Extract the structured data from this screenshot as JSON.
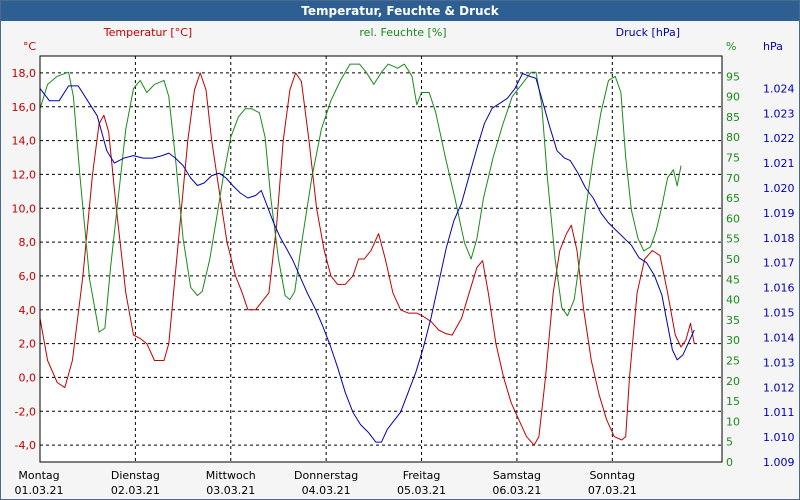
{
  "window": {
    "title": "Temperatur, Feuchte & Druck"
  },
  "chart_data": {
    "type": "line",
    "title": "Temperatur, Feuchte & Druck",
    "colors": {
      "temperature": "#c00000",
      "humidity": "#1a8a1a",
      "pressure": "#0000b4",
      "grid": "#000000",
      "frame_title_bg": "#2d5f93"
    },
    "axes": {
      "left": {
        "unit": "°C",
        "label": "Temperatur [°C]",
        "min": -5,
        "max": 19,
        "ticks": [
          "-4,0",
          "-2,0",
          "0,0",
          "2,0",
          "4,0",
          "6,0",
          "8,0",
          "10,0",
          "12,0",
          "14,0",
          "16,0",
          "18,0"
        ],
        "tick_values": [
          -4,
          -2,
          0,
          2,
          4,
          6,
          8,
          10,
          12,
          14,
          16,
          18
        ]
      },
      "right1": {
        "unit": "%",
        "label": "rel. Feuchte [%]",
        "min": 0,
        "max": 100,
        "ticks": [
          "0",
          "5",
          "10",
          "15",
          "20",
          "25",
          "30",
          "35",
          "40",
          "45",
          "50",
          "55",
          "60",
          "65",
          "70",
          "75",
          "80",
          "85",
          "90",
          "95"
        ],
        "tick_values": [
          0,
          5,
          10,
          15,
          20,
          25,
          30,
          35,
          40,
          45,
          50,
          55,
          60,
          65,
          70,
          75,
          80,
          85,
          90,
          95
        ]
      },
      "right2": {
        "unit": "hPa",
        "label": "Druck [hPa]",
        "min": 1.009,
        "max": 1.0253,
        "ticks": [
          "1.009",
          "1.010",
          "1.011",
          "1.012",
          "1.013",
          "1.014",
          "1.015",
          "1.016",
          "1.017",
          "1.018",
          "1.019",
          "1.020",
          "1.021",
          "1.022",
          "1.023",
          "1.024"
        ],
        "tick_values": [
          1.009,
          1.01,
          1.011,
          1.012,
          1.013,
          1.014,
          1.015,
          1.016,
          1.017,
          1.018,
          1.019,
          1.02,
          1.021,
          1.022,
          1.023,
          1.024
        ]
      }
    },
    "x": {
      "min": 0,
      "max": 7.15,
      "days": [
        {
          "name": "Montag",
          "date": "01.03.21",
          "pos": 0
        },
        {
          "name": "Dienstag",
          "date": "02.03.21",
          "pos": 1
        },
        {
          "name": "Mittwoch",
          "date": "03.03.21",
          "pos": 2
        },
        {
          "name": "Donnerstag",
          "date": "04.03.21",
          "pos": 3
        },
        {
          "name": "Freitag",
          "date": "05.03.21",
          "pos": 4
        },
        {
          "name": "Samstag",
          "date": "06.03.21",
          "pos": 5
        },
        {
          "name": "Sonntag",
          "date": "07.03.21",
          "pos": 6
        }
      ]
    },
    "series": [
      {
        "name": "Temperatur",
        "axis": "left",
        "points": [
          [
            0,
            3.5
          ],
          [
            0.08,
            1.0
          ],
          [
            0.18,
            -0.3
          ],
          [
            0.26,
            -0.6
          ],
          [
            0.34,
            1.0
          ],
          [
            0.45,
            6.0
          ],
          [
            0.55,
            12.0
          ],
          [
            0.62,
            15.0
          ],
          [
            0.67,
            15.5
          ],
          [
            0.72,
            14.5
          ],
          [
            0.8,
            10.0
          ],
          [
            0.9,
            5.0
          ],
          [
            0.98,
            2.5
          ],
          [
            1.05,
            2.3
          ],
          [
            1.12,
            2.0
          ],
          [
            1.2,
            1.0
          ],
          [
            1.3,
            1.0
          ],
          [
            1.35,
            2.0
          ],
          [
            1.45,
            8.0
          ],
          [
            1.55,
            14.0
          ],
          [
            1.62,
            17.0
          ],
          [
            1.68,
            18.0
          ],
          [
            1.74,
            17.0
          ],
          [
            1.8,
            14.0
          ],
          [
            1.88,
            11.0
          ],
          [
            1.96,
            8.0
          ],
          [
            2.05,
            6.0
          ],
          [
            2.12,
            5.0
          ],
          [
            2.18,
            4.0
          ],
          [
            2.26,
            4.0
          ],
          [
            2.33,
            4.5
          ],
          [
            2.4,
            5.0
          ],
          [
            2.48,
            9.0
          ],
          [
            2.55,
            14.0
          ],
          [
            2.62,
            17.0
          ],
          [
            2.68,
            18.0
          ],
          [
            2.74,
            17.5
          ],
          [
            2.82,
            14.0
          ],
          [
            2.9,
            10.0
          ],
          [
            2.98,
            7.5
          ],
          [
            3.05,
            6.0
          ],
          [
            3.12,
            5.5
          ],
          [
            3.2,
            5.5
          ],
          [
            3.28,
            6.0
          ],
          [
            3.34,
            7.0
          ],
          [
            3.4,
            7.0
          ],
          [
            3.47,
            7.5
          ],
          [
            3.55,
            8.5
          ],
          [
            3.62,
            7.0
          ],
          [
            3.7,
            5.0
          ],
          [
            3.78,
            4.0
          ],
          [
            3.86,
            3.8
          ],
          [
            3.95,
            3.8
          ],
          [
            4.02,
            3.6
          ],
          [
            4.1,
            3.3
          ],
          [
            4.18,
            2.8
          ],
          [
            4.25,
            2.6
          ],
          [
            4.32,
            2.5
          ],
          [
            4.42,
            3.5
          ],
          [
            4.5,
            5.0
          ],
          [
            4.58,
            6.5
          ],
          [
            4.64,
            6.9
          ],
          [
            4.7,
            5.0
          ],
          [
            4.78,
            2.0
          ],
          [
            4.86,
            0.0
          ],
          [
            4.94,
            -1.5
          ],
          [
            5.02,
            -2.5
          ],
          [
            5.1,
            -3.5
          ],
          [
            5.18,
            -4.0
          ],
          [
            5.23,
            -3.5
          ],
          [
            5.3,
            0.0
          ],
          [
            5.38,
            5.0
          ],
          [
            5.45,
            7.5
          ],
          [
            5.52,
            8.5
          ],
          [
            5.57,
            9.0
          ],
          [
            5.63,
            7.5
          ],
          [
            5.7,
            4.0
          ],
          [
            5.78,
            1.0
          ],
          [
            5.86,
            -1.0
          ],
          [
            5.94,
            -2.5
          ],
          [
            6.02,
            -3.5
          ],
          [
            6.1,
            -3.7
          ],
          [
            6.14,
            -3.5
          ],
          [
            6.18,
            0.0
          ],
          [
            6.26,
            5.0
          ],
          [
            6.34,
            7.0
          ],
          [
            6.42,
            7.5
          ],
          [
            6.5,
            7.2
          ],
          [
            6.58,
            5.0
          ],
          [
            6.66,
            2.5
          ],
          [
            6.72,
            1.8
          ],
          [
            6.77,
            2.2
          ],
          [
            6.82,
            3.2
          ],
          [
            6.86,
            2.0
          ]
        ]
      },
      {
        "name": "rel. Feuchte",
        "axis": "right1",
        "points": [
          [
            0,
            87
          ],
          [
            0.08,
            93
          ],
          [
            0.18,
            95
          ],
          [
            0.3,
            96
          ],
          [
            0.35,
            90
          ],
          [
            0.42,
            70
          ],
          [
            0.52,
            45
          ],
          [
            0.62,
            32
          ],
          [
            0.68,
            33
          ],
          [
            0.74,
            48
          ],
          [
            0.82,
            65
          ],
          [
            0.9,
            82
          ],
          [
            0.98,
            92
          ],
          [
            1.05,
            94
          ],
          [
            1.12,
            91
          ],
          [
            1.2,
            93
          ],
          [
            1.3,
            94
          ],
          [
            1.35,
            90
          ],
          [
            1.42,
            75
          ],
          [
            1.5,
            55
          ],
          [
            1.58,
            43
          ],
          [
            1.65,
            41
          ],
          [
            1.7,
            42
          ],
          [
            1.78,
            50
          ],
          [
            1.85,
            60
          ],
          [
            1.92,
            70
          ],
          [
            2.0,
            80
          ],
          [
            2.08,
            85
          ],
          [
            2.15,
            87
          ],
          [
            2.22,
            87
          ],
          [
            2.3,
            86
          ],
          [
            2.36,
            80
          ],
          [
            2.42,
            65
          ],
          [
            2.5,
            50
          ],
          [
            2.57,
            41
          ],
          [
            2.62,
            40
          ],
          [
            2.67,
            42
          ],
          [
            2.75,
            55
          ],
          [
            2.85,
            70
          ],
          [
            2.95,
            82
          ],
          [
            3.05,
            89
          ],
          [
            3.15,
            94
          ],
          [
            3.25,
            98
          ],
          [
            3.35,
            98
          ],
          [
            3.42,
            96
          ],
          [
            3.5,
            93
          ],
          [
            3.58,
            96
          ],
          [
            3.65,
            98
          ],
          [
            3.75,
            97
          ],
          [
            3.82,
            98
          ],
          [
            3.9,
            95
          ],
          [
            3.95,
            88
          ],
          [
            4.0,
            91
          ],
          [
            4.08,
            91
          ],
          [
            4.15,
            86
          ],
          [
            4.25,
            75
          ],
          [
            4.35,
            65
          ],
          [
            4.45,
            54
          ],
          [
            4.52,
            50
          ],
          [
            4.58,
            55
          ],
          [
            4.65,
            65
          ],
          [
            4.75,
            75
          ],
          [
            4.85,
            83
          ],
          [
            4.95,
            90
          ],
          [
            5.05,
            93
          ],
          [
            5.15,
            96
          ],
          [
            5.2,
            96
          ],
          [
            5.26,
            88
          ],
          [
            5.32,
            70
          ],
          [
            5.4,
            50
          ],
          [
            5.47,
            38
          ],
          [
            5.53,
            36
          ],
          [
            5.6,
            40
          ],
          [
            5.66,
            50
          ],
          [
            5.72,
            62
          ],
          [
            5.8,
            75
          ],
          [
            5.88,
            86
          ],
          [
            5.96,
            94
          ],
          [
            6.03,
            95
          ],
          [
            6.09,
            91
          ],
          [
            6.14,
            75
          ],
          [
            6.2,
            62
          ],
          [
            6.27,
            55
          ],
          [
            6.33,
            52
          ],
          [
            6.4,
            53
          ],
          [
            6.46,
            57
          ],
          [
            6.52,
            63
          ],
          [
            6.58,
            70
          ],
          [
            6.64,
            72
          ],
          [
            6.68,
            68
          ],
          [
            6.72,
            73
          ]
        ]
      },
      {
        "name": "Druck",
        "axis": "right2",
        "points": [
          [
            0,
            1.024
          ],
          [
            0.1,
            1.0235
          ],
          [
            0.2,
            1.0235
          ],
          [
            0.3,
            1.0241
          ],
          [
            0.4,
            1.0241
          ],
          [
            0.5,
            1.0235
          ],
          [
            0.6,
            1.0229
          ],
          [
            0.7,
            1.0215
          ],
          [
            0.78,
            1.021
          ],
          [
            0.88,
            1.0212
          ],
          [
            0.98,
            1.0213
          ],
          [
            1.08,
            1.0212
          ],
          [
            1.18,
            1.0212
          ],
          [
            1.28,
            1.0213
          ],
          [
            1.35,
            1.0214
          ],
          [
            1.42,
            1.0212
          ],
          [
            1.5,
            1.0209
          ],
          [
            1.58,
            1.0204
          ],
          [
            1.65,
            1.0201
          ],
          [
            1.72,
            1.0202
          ],
          [
            1.8,
            1.0205
          ],
          [
            1.88,
            1.0206
          ],
          [
            1.95,
            1.0204
          ],
          [
            2.02,
            1.0201
          ],
          [
            2.1,
            1.0198
          ],
          [
            2.18,
            1.0196
          ],
          [
            2.26,
            1.0197
          ],
          [
            2.32,
            1.0199
          ],
          [
            2.38,
            1.0193
          ],
          [
            2.45,
            1.0186
          ],
          [
            2.52,
            1.018
          ],
          [
            2.58,
            1.0176
          ],
          [
            2.65,
            1.0171
          ],
          [
            2.72,
            1.0165
          ],
          [
            2.8,
            1.0158
          ],
          [
            2.88,
            1.0152
          ],
          [
            2.96,
            1.0145
          ],
          [
            3.04,
            1.0137
          ],
          [
            3.12,
            1.0128
          ],
          [
            3.2,
            1.0118
          ],
          [
            3.28,
            1.011
          ],
          [
            3.36,
            1.0105
          ],
          [
            3.44,
            1.0102
          ],
          [
            3.52,
            1.0098
          ],
          [
            3.58,
            1.0098
          ],
          [
            3.64,
            1.0103
          ],
          [
            3.7,
            1.0106
          ],
          [
            3.78,
            1.011
          ],
          [
            3.86,
            1.0118
          ],
          [
            3.94,
            1.0126
          ],
          [
            4.02,
            1.0136
          ],
          [
            4.1,
            1.0148
          ],
          [
            4.18,
            1.0162
          ],
          [
            4.26,
            1.0176
          ],
          [
            4.34,
            1.0187
          ],
          [
            4.42,
            1.0194
          ],
          [
            4.5,
            1.0205
          ],
          [
            4.58,
            1.0216
          ],
          [
            4.66,
            1.0226
          ],
          [
            4.74,
            1.0232
          ],
          [
            4.82,
            1.0234
          ],
          [
            4.9,
            1.0236
          ],
          [
            4.98,
            1.024
          ],
          [
            5.06,
            1.0246
          ],
          [
            5.12,
            1.0245
          ],
          [
            5.2,
            1.0244
          ],
          [
            5.26,
            1.0236
          ],
          [
            5.34,
            1.0225
          ],
          [
            5.42,
            1.0215
          ],
          [
            5.5,
            1.0212
          ],
          [
            5.56,
            1.0211
          ],
          [
            5.64,
            1.0206
          ],
          [
            5.72,
            1.02
          ],
          [
            5.8,
            1.0196
          ],
          [
            5.88,
            1.019
          ],
          [
            5.96,
            1.0186
          ],
          [
            6.04,
            1.0183
          ],
          [
            6.12,
            1.018
          ],
          [
            6.2,
            1.0177
          ],
          [
            6.28,
            1.0172
          ],
          [
            6.36,
            1.017
          ],
          [
            6.44,
            1.0165
          ],
          [
            6.52,
            1.0157
          ],
          [
            6.58,
            1.0145
          ],
          [
            6.63,
            1.0135
          ],
          [
            6.68,
            1.0131
          ],
          [
            6.74,
            1.0133
          ],
          [
            6.8,
            1.0138
          ],
          [
            6.86,
            1.0143
          ]
        ]
      }
    ]
  }
}
